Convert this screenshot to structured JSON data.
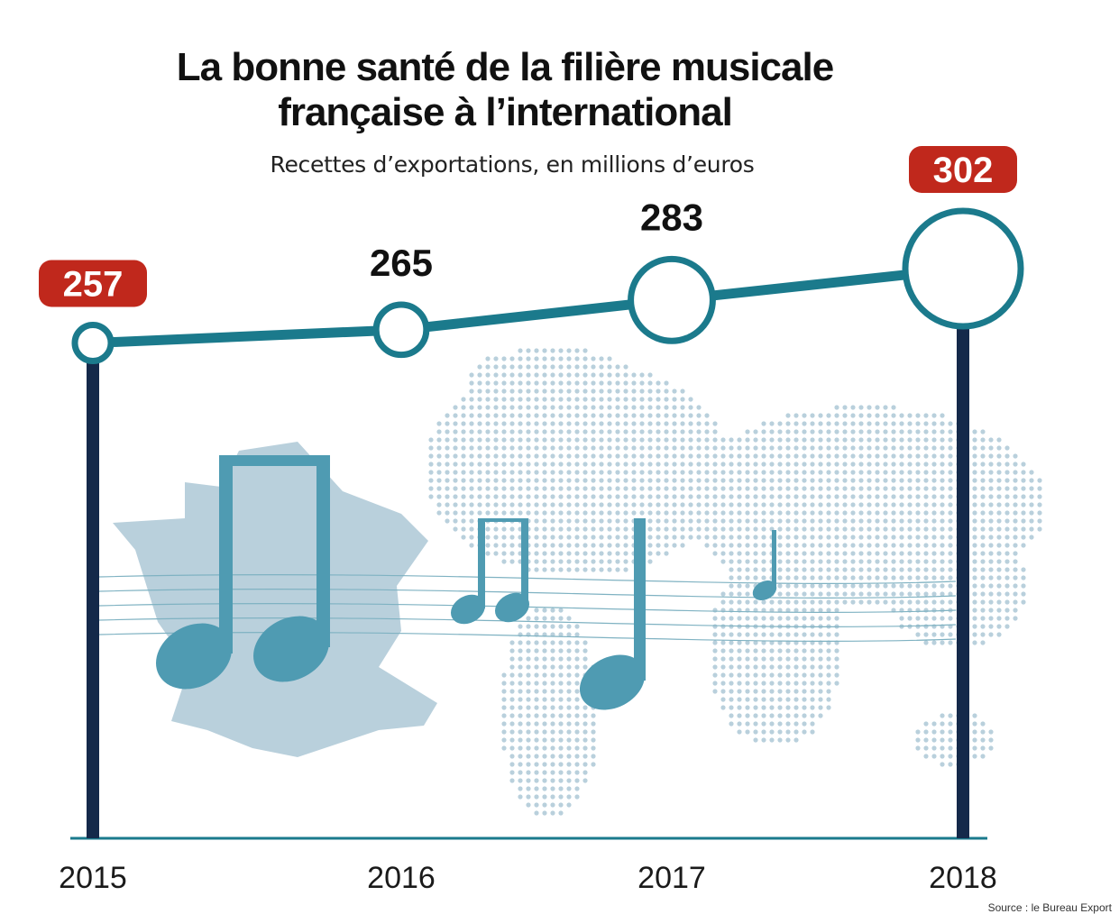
{
  "header": {
    "title_line1": "La bonne santé de la filière musicale",
    "title_line2": "française à l’international",
    "subtitle": "Recettes d’exportations, en millions d’euros"
  },
  "source": "Source : le Bureau Export",
  "colors": {
    "line": "#1b7a8c",
    "posts": "#14294a",
    "highlight_badge": "#c0281c",
    "map": "#b9d0dc",
    "notes": "#4f9bb2",
    "baseline": "#1b7a8c"
  },
  "chart_data": {
    "type": "line",
    "title": "La bonne santé de la filière musicale française à l’international",
    "subtitle": "Recettes d’exportations, en millions d’euros",
    "x": [
      "2015",
      "2016",
      "2017",
      "2018"
    ],
    "series": [
      {
        "values": [
          257,
          265,
          283,
          302
        ]
      }
    ],
    "highlighted": [
      "2015",
      "2018"
    ],
    "marker_size_encodes_value": true,
    "grid": false,
    "legend": "none"
  }
}
